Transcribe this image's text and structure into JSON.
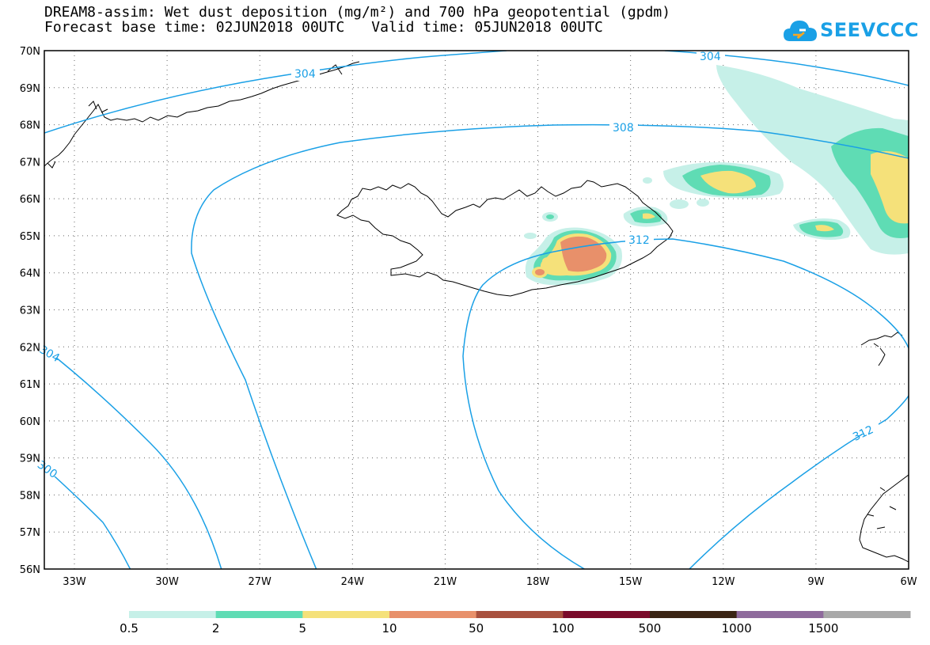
{
  "header": {
    "title_line1": "DREAM8-assim: Wet dust deposition (mg/m²) and 700 hPa geopotential (gpdm)",
    "base_time": "Forecast base time: 02JUN2018 00UTC",
    "valid_time": "Valid time: 05JUN2018 00UTC"
  },
  "logo": {
    "text": "SEEVCCC",
    "icon": "cloud-logo-icon",
    "color": "#1aa0e6"
  },
  "map": {
    "lat_labels": [
      "70N",
      "69N",
      "68N",
      "67N",
      "66N",
      "65N",
      "64N",
      "63N",
      "62N",
      "61N",
      "60N",
      "59N",
      "58N",
      "57N",
      "56N"
    ],
    "lon_labels": [
      "33W",
      "30W",
      "27W",
      "24W",
      "21W",
      "18W",
      "15W",
      "12W",
      "9W",
      "6W"
    ],
    "contour_color": "#1aa0e6",
    "contour_labels": [
      "304",
      "304",
      "308",
      "312",
      "312",
      "304",
      "300"
    ]
  },
  "legend": {
    "labels": [
      "0.5",
      "2",
      "5",
      "10",
      "50",
      "100",
      "500",
      "1000",
      "1500"
    ],
    "colors": [
      "#c6f0e8",
      "#5fdcb4",
      "#f5e17a",
      "#e8906a",
      "#a8503e",
      "#7a0a2a",
      "#3a2414",
      "#8e6a9c",
      "#a8a8a8"
    ]
  }
}
